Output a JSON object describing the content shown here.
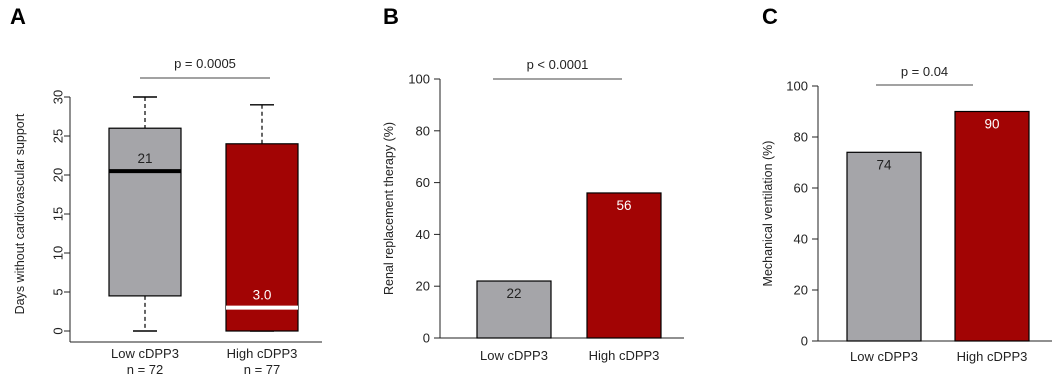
{
  "colors": {
    "low": "#a5a5a9",
    "high": "#a20404",
    "axis": "#222222"
  },
  "chart_data": [
    {
      "panel": "A",
      "type": "box",
      "ylabel": "Days without cardiovascular support",
      "ylim": [
        0,
        30
      ],
      "yticks": [
        0,
        5,
        10,
        15,
        20,
        25,
        30
      ],
      "categories": [
        "Low cDPP3",
        "High cDPP3"
      ],
      "sample_sizes": [
        "n = 72",
        "n = 77"
      ],
      "boxes": [
        {
          "whisker_low": 0,
          "q1": 4.5,
          "median": 20.5,
          "q3": 26,
          "whisker_high": 30,
          "median_label": "21"
        },
        {
          "whisker_low": 0,
          "q1": 0,
          "median": 3.0,
          "q3": 24,
          "whisker_high": 29,
          "median_label": "3.0"
        }
      ],
      "pvalue": "p = 0.0005"
    },
    {
      "panel": "B",
      "type": "bar",
      "ylabel": "Renal replacement therapy (%)",
      "ylim": [
        0,
        100
      ],
      "yticks": [
        0,
        20,
        40,
        60,
        80,
        100
      ],
      "categories": [
        "Low cDPP3",
        "High cDPP3"
      ],
      "values": [
        22,
        56
      ],
      "value_labels": [
        "22",
        "56"
      ],
      "pvalue": "p < 0.0001"
    },
    {
      "panel": "C",
      "type": "bar",
      "ylabel": "Mechanical ventilation (%)",
      "ylim": [
        0,
        100
      ],
      "yticks": [
        0,
        20,
        40,
        60,
        80,
        100
      ],
      "categories": [
        "Low cDPP3",
        "High cDPP3"
      ],
      "values": [
        74,
        90
      ],
      "value_labels": [
        "74",
        "90"
      ],
      "pvalue": "p = 0.04"
    }
  ]
}
